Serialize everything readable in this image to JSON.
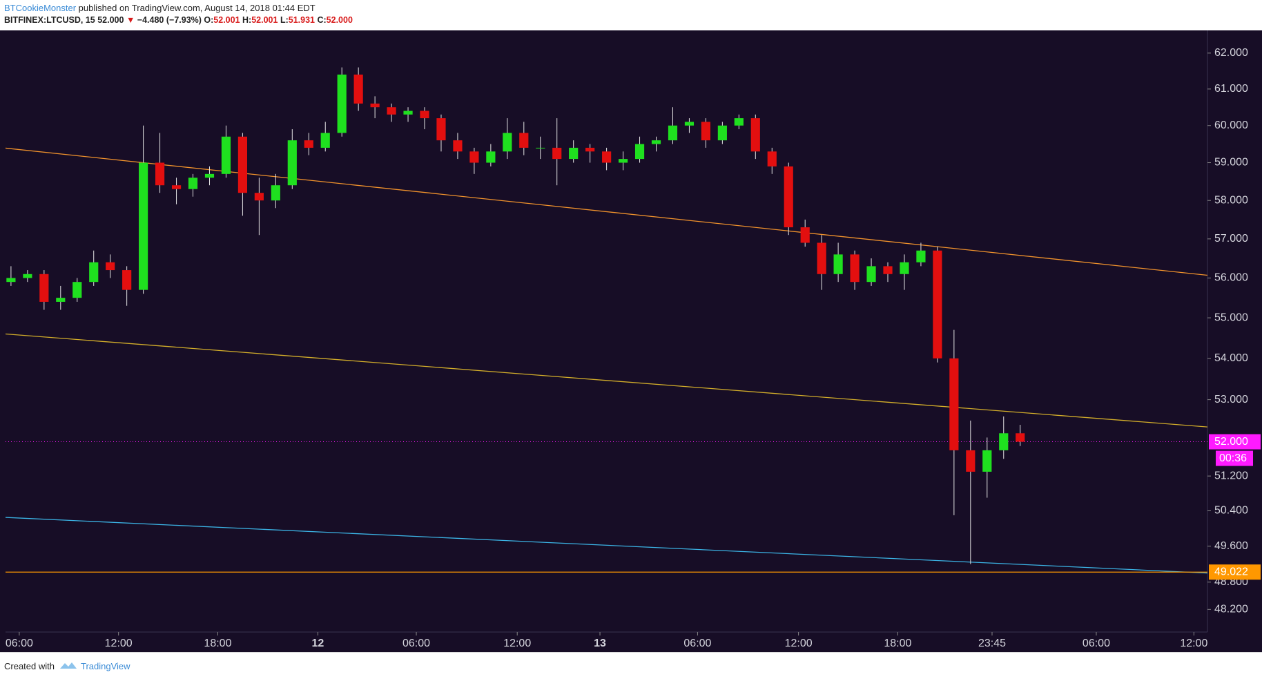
{
  "header": {
    "author": "BTCookieMonster",
    "published": "published on TradingView.com, August 14, 2018 01:44 EDT",
    "symbol": "BITFINEX:LTCUSD, 15",
    "last": "52.000",
    "arrow": "▼",
    "change": "−4.480 (−7.93%)",
    "open_label": "O:",
    "open": "52.001",
    "high_label": "H:",
    "high": "52.001",
    "low_label": "L:",
    "low": "51.931",
    "close_label": "C:",
    "close": "52.000"
  },
  "footer": {
    "created": "Created with",
    "brand": "TradingView"
  },
  "chart_data": {
    "type": "candlestick",
    "log_scale": true,
    "grid": false,
    "background": "#170d26",
    "up_color": "#1fe01f",
    "down_color": "#e30f0f",
    "wick_color": "#e6e6e6",
    "xlim": [
      -0.83,
      71.82
    ],
    "ylim": [
      47.71,
      62.64
    ],
    "xticks": [
      {
        "value": 0,
        "label": "06:00"
      },
      {
        "value": 6,
        "label": "12:00"
      },
      {
        "value": 12,
        "label": "18:00"
      },
      {
        "value": 18.05,
        "label": "12",
        "bold": true
      },
      {
        "value": 24,
        "label": "06:00"
      },
      {
        "value": 30.1,
        "label": "12:00"
      },
      {
        "value": 35.1,
        "label": "13",
        "bold": true
      },
      {
        "value": 41,
        "label": "06:00"
      },
      {
        "value": 47.1,
        "label": "12:00"
      },
      {
        "value": 53.1,
        "label": "18:00"
      },
      {
        "value": 58.8,
        "label": "23:45"
      },
      {
        "value": 65.1,
        "label": "06:00"
      },
      {
        "value": 71,
        "label": "12:00"
      }
    ],
    "yticks": [
      {
        "value": 62,
        "label": "62.000"
      },
      {
        "value": 61,
        "label": "61.000"
      },
      {
        "value": 60,
        "label": "60.000"
      },
      {
        "value": 59,
        "label": "59.000"
      },
      {
        "value": 58,
        "label": "58.000"
      },
      {
        "value": 57,
        "label": "57.000"
      },
      {
        "value": 56,
        "label": "56.000"
      },
      {
        "value": 55,
        "label": "55.000"
      },
      {
        "value": 54,
        "label": "54.000"
      },
      {
        "value": 53,
        "label": "53.000"
      },
      {
        "value": 51.2,
        "label": "51.200"
      },
      {
        "value": 50.4,
        "label": "50.400"
      },
      {
        "value": 49.6,
        "label": "49.600"
      },
      {
        "value": 48.8,
        "label": "48.800"
      },
      {
        "value": 48.2,
        "label": "48.200"
      }
    ],
    "x": [
      -0.5,
      0.5,
      1.5,
      2.5,
      3.5,
      4.5,
      5.5,
      6.5,
      7.5,
      8.5,
      9.5,
      10.5,
      11.5,
      12.5,
      13.5,
      14.5,
      15.5,
      16.5,
      17.5,
      18.5,
      19.5,
      20.5,
      21.5,
      22.5,
      23.5,
      24.5,
      25.5,
      26.5,
      27.5,
      28.5,
      29.5,
      30.5,
      31.5,
      32.5,
      33.5,
      34.5,
      35.5,
      36.5,
      37.5,
      38.5,
      39.5,
      40.5,
      41.5,
      42.5,
      43.5,
      44.5,
      45.5,
      46.5,
      47.5,
      48.5,
      49.5,
      50.5,
      51.5,
      52.5,
      53.5,
      54.5,
      55.5,
      56.5,
      57.5,
      58.5,
      59.5,
      60.5
    ],
    "ohlc": [
      [
        55.9,
        56.3,
        55.8,
        56.0
      ],
      [
        56.0,
        56.2,
        55.9,
        56.1
      ],
      [
        56.1,
        56.2,
        55.2,
        55.4
      ],
      [
        55.4,
        55.8,
        55.2,
        55.5
      ],
      [
        55.5,
        56.0,
        55.4,
        55.9
      ],
      [
        55.9,
        56.7,
        55.8,
        56.4
      ],
      [
        56.4,
        56.6,
        56.0,
        56.2
      ],
      [
        56.2,
        56.3,
        55.3,
        55.7
      ],
      [
        55.7,
        60.0,
        55.6,
        59.0
      ],
      [
        59.0,
        59.8,
        58.2,
        58.4
      ],
      [
        58.4,
        58.6,
        57.9,
        58.3
      ],
      [
        58.3,
        58.7,
        58.1,
        58.6
      ],
      [
        58.6,
        58.9,
        58.4,
        58.7
      ],
      [
        58.7,
        60.0,
        58.6,
        59.7
      ],
      [
        59.7,
        59.8,
        57.6,
        58.2
      ],
      [
        58.2,
        58.6,
        57.1,
        58.0
      ],
      [
        58.0,
        58.7,
        57.8,
        58.4
      ],
      [
        58.4,
        59.9,
        58.3,
        59.6
      ],
      [
        59.6,
        59.8,
        59.2,
        59.4
      ],
      [
        59.4,
        60.1,
        59.3,
        59.8
      ],
      [
        59.8,
        61.6,
        59.7,
        61.4
      ],
      [
        61.4,
        61.6,
        60.4,
        60.6
      ],
      [
        60.6,
        60.8,
        60.2,
        60.5
      ],
      [
        60.5,
        60.6,
        60.1,
        60.3
      ],
      [
        60.3,
        60.5,
        60.1,
        60.4
      ],
      [
        60.4,
        60.5,
        59.9,
        60.2
      ],
      [
        60.2,
        60.3,
        59.3,
        59.6
      ],
      [
        59.6,
        59.8,
        59.1,
        59.3
      ],
      [
        59.3,
        59.4,
        58.7,
        59.0
      ],
      [
        59.0,
        59.5,
        58.9,
        59.3
      ],
      [
        59.3,
        60.2,
        59.1,
        59.8
      ],
      [
        59.8,
        60.1,
        59.2,
        59.4
      ],
      [
        59.4,
        59.7,
        59.1,
        59.4
      ],
      [
        59.4,
        60.2,
        58.4,
        59.1
      ],
      [
        59.1,
        59.6,
        59.0,
        59.4
      ],
      [
        59.4,
        59.5,
        59.0,
        59.3
      ],
      [
        59.3,
        59.4,
        58.8,
        59.0
      ],
      [
        59.0,
        59.3,
        58.8,
        59.1
      ],
      [
        59.1,
        59.7,
        59.0,
        59.5
      ],
      [
        59.5,
        59.7,
        59.3,
        59.6
      ],
      [
        59.6,
        60.5,
        59.5,
        60.0
      ],
      [
        60.0,
        60.2,
        59.8,
        60.1
      ],
      [
        60.1,
        60.2,
        59.4,
        59.6
      ],
      [
        59.6,
        60.1,
        59.5,
        60.0
      ],
      [
        60.0,
        60.3,
        59.9,
        60.2
      ],
      [
        60.2,
        60.3,
        59.1,
        59.3
      ],
      [
        59.3,
        59.4,
        58.7,
        58.9
      ],
      [
        58.9,
        59.0,
        57.1,
        57.3
      ],
      [
        57.3,
        57.5,
        56.8,
        56.9
      ],
      [
        56.9,
        57.1,
        55.7,
        56.1
      ],
      [
        56.1,
        56.9,
        55.9,
        56.6
      ],
      [
        56.6,
        56.7,
        55.7,
        55.9
      ],
      [
        55.9,
        56.5,
        55.8,
        56.3
      ],
      [
        56.3,
        56.4,
        55.9,
        56.1
      ],
      [
        56.1,
        56.6,
        55.7,
        56.4
      ],
      [
        56.4,
        56.9,
        56.3,
        56.7
      ],
      [
        56.7,
        56.8,
        53.9,
        54.0
      ],
      [
        54.0,
        54.7,
        50.3,
        51.8
      ],
      [
        51.8,
        52.5,
        49.2,
        51.3
      ],
      [
        51.3,
        52.1,
        50.7,
        51.8
      ],
      [
        51.8,
        52.6,
        51.6,
        52.2
      ],
      [
        52.2,
        52.4,
        51.9,
        52.0
      ]
    ],
    "trendlines": [
      {
        "x1": -0.83,
        "y1": 59.39,
        "x2": 71.82,
        "y2": 56.07,
        "color": "#f0922c"
      },
      {
        "x1": -0.83,
        "y1": 54.6,
        "x2": 71.82,
        "y2": 52.35,
        "color": "#d2ad2a"
      },
      {
        "x1": -0.83,
        "y1": 50.25,
        "x2": 71.82,
        "y2": 49.0,
        "color": "#3bb3e4"
      }
    ],
    "last_price": {
      "value": 52.0,
      "label": "52.000",
      "color": "#ff1aff"
    },
    "countdown": "00:36",
    "horizontal_line": {
      "value": 49.022,
      "label": "49.022",
      "color": "#ff9800"
    }
  }
}
